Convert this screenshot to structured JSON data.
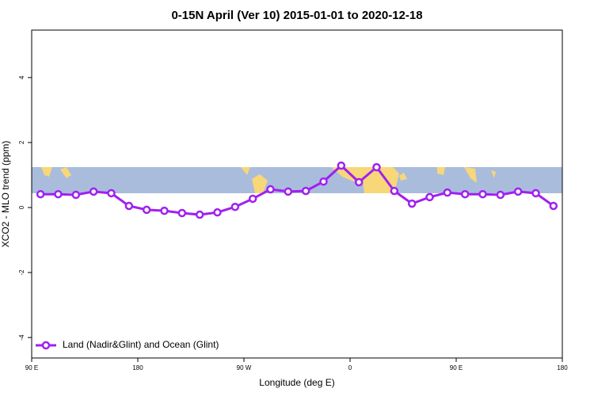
{
  "chart_data": {
    "type": "line",
    "title": "0-15N April (Ver 10)   2015-01-01 to 2020-12-18",
    "xlabel": "Longitude (deg E)",
    "ylabel": "XCO2 - MLO trend (ppm)",
    "x": [
      97.5,
      112.5,
      127.5,
      142.5,
      157.5,
      172.5,
      187.5,
      202.5,
      217.5,
      232.5,
      247.5,
      262.5,
      277.5,
      292.5,
      307.5,
      322.5,
      337.5,
      352.5,
      367.5,
      382.5,
      397.5,
      412.5,
      427.5,
      442.5,
      457.5,
      472.5,
      487.5,
      502.5,
      517.5,
      532.5
    ],
    "series": [
      {
        "name": "Land (Nadir&Glint) and Ocean (Glint)",
        "color": "#a020f0",
        "values": [
          0.41,
          0.41,
          0.39,
          0.49,
          0.44,
          0.05,
          -0.07,
          -0.1,
          -0.17,
          -0.22,
          -0.15,
          0.02,
          0.27,
          0.56,
          0.49,
          0.51,
          0.8,
          1.29,
          0.78,
          1.24,
          0.51,
          0.12,
          0.32,
          0.46,
          0.41,
          0.41,
          0.39,
          0.49,
          0.44,
          0.05
        ]
      }
    ],
    "xlim": [
      90,
      540
    ],
    "xticks": [
      {
        "value": 90,
        "label": "90 E"
      },
      180,
      {
        "value": 270,
        "label": "90 W"
      },
      {
        "value": 360,
        "label": "0"
      },
      {
        "value": 450,
        "label": "90 E"
      },
      {
        "value": 540,
        "label": "180"
      }
    ],
    "ylim": [
      -4.63,
      5.46
    ],
    "yticks": [
      -4,
      -2,
      0,
      2,
      4
    ],
    "legend": "bottom-left"
  }
}
